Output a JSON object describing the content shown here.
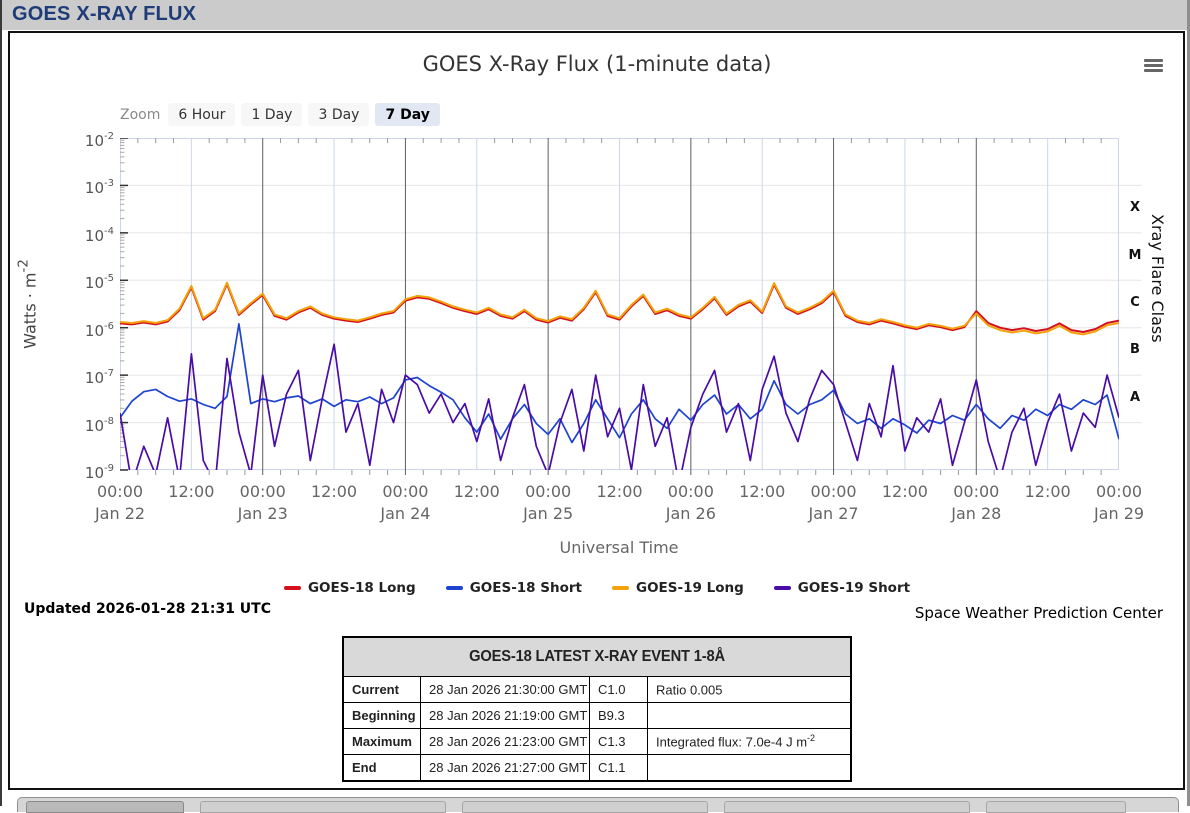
{
  "window": {
    "title": "GOES X-RAY FLUX"
  },
  "chart": {
    "title": "GOES X-Ray Flux (1-minute data)",
    "zoom": {
      "label": "Zoom",
      "buttons": [
        {
          "label": "6 Hour",
          "selected": false
        },
        {
          "label": "1 Day",
          "selected": false
        },
        {
          "label": "3 Day",
          "selected": false
        },
        {
          "label": "7 Day",
          "selected": true
        }
      ]
    },
    "updated": "Updated 2026-01-28 21:31 UTC",
    "credit": "Space Weather Prediction Center"
  },
  "legend": {
    "items": [
      {
        "label": "GOES-18 Long",
        "color": "#d40f1e"
      },
      {
        "label": "GOES-18 Short",
        "color": "#1d44cf"
      },
      {
        "label": "GOES-19 Long",
        "color": "#f2a20d"
      },
      {
        "label": "GOES-19 Short",
        "color": "#4a0ca6"
      }
    ]
  },
  "chart_data": {
    "type": "line",
    "title": "GOES X-Ray Flux (1-minute data)",
    "xlabel": "Universal Time",
    "ylabel_parts": {
      "text": "Watts · m",
      "sup": "-2"
    },
    "y2label": "Xray Flare Class",
    "y_scale": "log10",
    "ylim_exponents": [
      -9,
      -2
    ],
    "grid": "on",
    "legend_position": "bottom",
    "yaxis": {
      "ticks": [
        {
          "base": "10",
          "exp": "-2"
        },
        {
          "base": "10",
          "exp": "-3"
        },
        {
          "base": "10",
          "exp": "-4"
        },
        {
          "base": "10",
          "exp": "-5"
        },
        {
          "base": "10",
          "exp": "-6"
        },
        {
          "base": "10",
          "exp": "-7"
        },
        {
          "base": "10",
          "exp": "-8"
        },
        {
          "base": "10",
          "exp": "-9"
        }
      ]
    },
    "flare_classes": [
      {
        "label": "X",
        "band_exponents": [
          -4,
          -3
        ]
      },
      {
        "label": "M",
        "band_exponents": [
          -5,
          -4
        ]
      },
      {
        "label": "C",
        "band_exponents": [
          -6,
          -5
        ]
      },
      {
        "label": "B",
        "band_exponents": [
          -7,
          -6
        ]
      },
      {
        "label": "A",
        "band_exponents": [
          -8,
          -7
        ]
      }
    ],
    "x_unit": "hours since 2026-01-22 00:00 UTC",
    "x_step_hours": 2,
    "x_range_hours": [
      0,
      168
    ],
    "xaxis": {
      "ticks": [
        {
          "t": 0,
          "time": "00:00",
          "date": "Jan 22"
        },
        {
          "t": 12,
          "time": "12:00",
          "date": null
        },
        {
          "t": 24,
          "time": "00:00",
          "date": "Jan 23"
        },
        {
          "t": 36,
          "time": "12:00",
          "date": null
        },
        {
          "t": 48,
          "time": "00:00",
          "date": "Jan 24"
        },
        {
          "t": 60,
          "time": "12:00",
          "date": null
        },
        {
          "t": 72,
          "time": "00:00",
          "date": "Jan 25"
        },
        {
          "t": 84,
          "time": "12:00",
          "date": null
        },
        {
          "t": 96,
          "time": "00:00",
          "date": "Jan 26"
        },
        {
          "t": 108,
          "time": "12:00",
          "date": null
        },
        {
          "t": 120,
          "time": "00:00",
          "date": "Jan 27"
        },
        {
          "t": 132,
          "time": "12:00",
          "date": null
        },
        {
          "t": 144,
          "time": "00:00",
          "date": "Jan 28"
        },
        {
          "t": 156,
          "time": "12:00",
          "date": null
        },
        {
          "t": 168,
          "time": "00:00",
          "date": "Jan 29"
        }
      ]
    },
    "series": [
      {
        "name": "GOES-18 Long",
        "color": "#d40f1e",
        "log10_values": [
          -5.91,
          -5.93,
          -5.89,
          -5.93,
          -5.87,
          -5.63,
          -5.15,
          -5.83,
          -5.65,
          -5.08,
          -5.73,
          -5.51,
          -5.31,
          -5.75,
          -5.83,
          -5.68,
          -5.58,
          -5.73,
          -5.81,
          -5.85,
          -5.88,
          -5.81,
          -5.73,
          -5.68,
          -5.43,
          -5.36,
          -5.39,
          -5.48,
          -5.58,
          -5.65,
          -5.71,
          -5.61,
          -5.75,
          -5.81,
          -5.65,
          -5.83,
          -5.89,
          -5.79,
          -5.85,
          -5.61,
          -5.25,
          -5.75,
          -5.83,
          -5.55,
          -5.33,
          -5.71,
          -5.63,
          -5.75,
          -5.81,
          -5.61,
          -5.38,
          -5.73,
          -5.55,
          -5.45,
          -5.69,
          -5.09,
          -5.58,
          -5.71,
          -5.61,
          -5.48,
          -5.25,
          -5.75,
          -5.88,
          -5.93,
          -5.85,
          -5.91,
          -5.98,
          -6.03,
          -5.95,
          -5.99,
          -6.05,
          -5.99,
          -5.65,
          -5.9,
          -6.0,
          -6.05,
          -6.01,
          -6.07,
          -6.03,
          -5.91,
          -6.05,
          -6.09,
          -6.03,
          -5.9,
          -5.85
        ]
      },
      {
        "name": "GOES-19 Long",
        "color": "#f2a20d",
        "log10_values": [
          -5.88,
          -5.9,
          -5.86,
          -5.9,
          -5.84,
          -5.6,
          -5.12,
          -5.8,
          -5.62,
          -5.05,
          -5.7,
          -5.48,
          -5.28,
          -5.72,
          -5.8,
          -5.65,
          -5.55,
          -5.7,
          -5.78,
          -5.82,
          -5.85,
          -5.78,
          -5.7,
          -5.65,
          -5.4,
          -5.33,
          -5.36,
          -5.45,
          -5.55,
          -5.62,
          -5.68,
          -5.58,
          -5.72,
          -5.78,
          -5.62,
          -5.8,
          -5.86,
          -5.76,
          -5.82,
          -5.58,
          -5.22,
          -5.72,
          -5.8,
          -5.52,
          -5.3,
          -5.68,
          -5.6,
          -5.72,
          -5.78,
          -5.58,
          -5.35,
          -5.7,
          -5.52,
          -5.42,
          -5.66,
          -5.06,
          -5.55,
          -5.68,
          -5.58,
          -5.45,
          -5.22,
          -5.72,
          -5.85,
          -5.9,
          -5.82,
          -5.88,
          -5.95,
          -6.0,
          -5.92,
          -5.96,
          -6.02,
          -5.96,
          -5.7,
          -5.95,
          -6.05,
          -6.1,
          -6.06,
          -6.12,
          -6.08,
          -5.96,
          -6.1,
          -6.14,
          -6.08,
          -5.95,
          -5.9
        ]
      },
      {
        "name": "GOES-18 Short",
        "color": "#1d44cf",
        "log10_values": [
          -7.9,
          -7.55,
          -7.35,
          -7.3,
          -7.45,
          -7.55,
          -7.5,
          -7.62,
          -7.7,
          -7.45,
          -5.92,
          -7.6,
          -7.5,
          -7.56,
          -7.48,
          -7.44,
          -7.6,
          -7.5,
          -7.66,
          -7.52,
          -7.56,
          -7.46,
          -7.6,
          -7.48,
          -7.1,
          -7.05,
          -7.22,
          -7.36,
          -7.52,
          -7.9,
          -8.2,
          -7.82,
          -8.35,
          -7.92,
          -7.62,
          -8.02,
          -8.25,
          -7.92,
          -8.42,
          -8.02,
          -7.52,
          -7.92,
          -8.32,
          -7.82,
          -7.52,
          -7.92,
          -8.12,
          -7.72,
          -7.95,
          -7.62,
          -7.42,
          -7.82,
          -7.62,
          -7.92,
          -7.72,
          -7.12,
          -7.62,
          -7.82,
          -7.62,
          -7.52,
          -7.32,
          -7.82,
          -8.02,
          -7.92,
          -8.12,
          -7.92,
          -8.05,
          -8.22,
          -7.95,
          -8.02,
          -7.85,
          -7.95,
          -7.62,
          -7.92,
          -8.12,
          -7.85,
          -7.95,
          -7.72,
          -7.85,
          -7.62,
          -7.72,
          -7.52,
          -7.62,
          -7.42,
          -8.35
        ]
      },
      {
        "name": "GOES-19 Short",
        "color": "#4a0ca6",
        "log10_values": [
          -7.8,
          -9.3,
          -8.5,
          -9.1,
          -7.9,
          -9.2,
          -6.55,
          -8.8,
          -9.3,
          -6.65,
          -8.2,
          -9.1,
          -7.0,
          -8.5,
          -7.4,
          -6.9,
          -8.8,
          -7.5,
          -6.35,
          -8.2,
          -7.6,
          -8.9,
          -7.3,
          -8.0,
          -7.0,
          -7.2,
          -7.8,
          -7.4,
          -8.0,
          -7.6,
          -8.4,
          -7.5,
          -8.8,
          -7.9,
          -7.2,
          -8.5,
          -9.1,
          -8.0,
          -7.3,
          -8.6,
          -7.0,
          -8.3,
          -7.7,
          -9.0,
          -7.2,
          -8.5,
          -7.9,
          -9.3,
          -8.1,
          -7.4,
          -6.9,
          -8.2,
          -7.6,
          -8.8,
          -7.3,
          -6.6,
          -7.8,
          -8.4,
          -7.5,
          -6.9,
          -7.2,
          -8.0,
          -8.8,
          -7.6,
          -8.3,
          -6.8,
          -8.6,
          -7.9,
          -8.2,
          -7.5,
          -8.9,
          -8.0,
          -7.1,
          -8.4,
          -9.2,
          -8.2,
          -7.7,
          -8.9,
          -8.0,
          -7.4,
          -8.6,
          -7.8,
          -8.1,
          -7.0,
          -7.9
        ]
      }
    ]
  },
  "event_table": {
    "title": "GOES-18 LATEST X-RAY EVENT 1-8Å",
    "rows": [
      {
        "label": "Current",
        "time": "28 Jan 2026 21:30:00 GMT",
        "class": "C1.0",
        "note": "Ratio 0.005",
        "note_sup": ""
      },
      {
        "label": "Beginning",
        "time": "28 Jan 2026 21:19:00 GMT",
        "class": "B9.3",
        "note": "",
        "note_sup": ""
      },
      {
        "label": "Maximum",
        "time": "28 Jan 2026 21:23:00 GMT",
        "class": "C1.3",
        "note": "Integrated flux: 7.0e-4 J m",
        "note_sup": "-2"
      },
      {
        "label": "End",
        "time": "28 Jan 2026 21:27:00 GMT",
        "class": "C1.1",
        "note": "",
        "note_sup": ""
      }
    ]
  }
}
